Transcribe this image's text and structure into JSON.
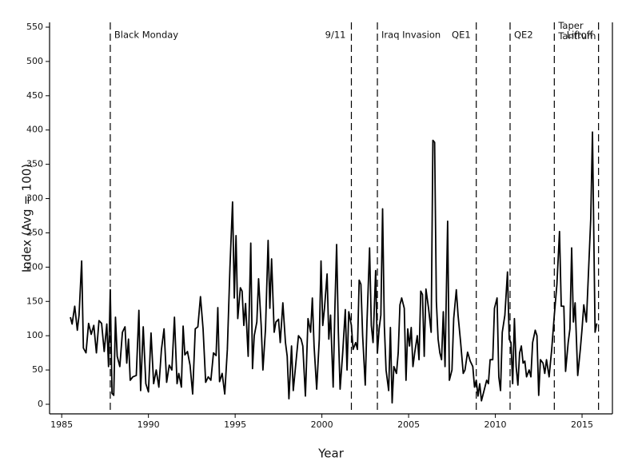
{
  "chart_data": {
    "type": "line",
    "xlabel": "Year",
    "ylabel": "Index (Avg = 100)",
    "xlim": [
      1984.3,
      2016.75
    ],
    "ylim": [
      -14,
      557
    ],
    "xticks": [
      1985,
      1990,
      1995,
      2000,
      2005,
      2010,
      2015
    ],
    "yticks": [
      0,
      50,
      100,
      150,
      200,
      250,
      300,
      350,
      400,
      450,
      500,
      550
    ],
    "color": "#000000",
    "events": [
      {
        "label": "Black Monday",
        "x": 1987.8
      },
      {
        "label": "9/11",
        "x": 2001.7
      },
      {
        "label": "Iraq Invasion",
        "x": 2003.2
      },
      {
        "label": "QE1",
        "x": 2008.9
      },
      {
        "label": "QE2",
        "x": 2010.85
      },
      {
        "label": "Taper Tantrum",
        "x": 2013.4
      },
      {
        "label": "Liftoff",
        "x": 2015.95
      }
    ],
    "x": [
      1985.5,
      1985.6,
      1985.75,
      1985.9,
      1986.0,
      1986.15,
      1986.25,
      1986.4,
      1986.55,
      1986.7,
      1986.85,
      1987.0,
      1987.15,
      1987.3,
      1987.45,
      1987.6,
      1987.7,
      1987.8,
      1987.9,
      1988.0,
      1988.1,
      1988.2,
      1988.35,
      1988.5,
      1988.65,
      1988.75,
      1988.85,
      1988.95,
      1989.1,
      1989.3,
      1989.45,
      1989.55,
      1989.7,
      1989.85,
      1990.0,
      1990.15,
      1990.3,
      1990.45,
      1990.6,
      1990.75,
      1990.9,
      1991.05,
      1991.2,
      1991.35,
      1991.5,
      1991.65,
      1991.75,
      1991.9,
      1992.0,
      1992.1,
      1992.25,
      1992.4,
      1992.55,
      1992.7,
      1992.85,
      1993.0,
      1993.15,
      1993.3,
      1993.45,
      1993.6,
      1993.75,
      1993.9,
      1994.0,
      1994.1,
      1994.25,
      1994.4,
      1994.55,
      1994.7,
      1994.85,
      1994.95,
      1995.05,
      1995.15,
      1995.3,
      1995.4,
      1995.5,
      1995.6,
      1995.75,
      1995.9,
      1996.0,
      1996.1,
      1996.25,
      1996.35,
      1996.5,
      1996.6,
      1996.75,
      1996.9,
      1997.0,
      1997.1,
      1997.25,
      1997.35,
      1997.5,
      1997.6,
      1997.75,
      1997.9,
      1998.0,
      1998.1,
      1998.25,
      1998.35,
      1998.5,
      1998.65,
      1998.8,
      1998.9,
      1999.05,
      1999.2,
      1999.35,
      1999.45,
      1999.55,
      1999.7,
      1999.85,
      1999.95,
      2000.05,
      2000.15,
      2000.3,
      2000.4,
      2000.5,
      2000.65,
      2000.75,
      2000.85,
      2000.95,
      2001.05,
      2001.2,
      2001.35,
      2001.45,
      2001.55,
      2001.7,
      2001.8,
      2001.95,
      2002.05,
      2002.15,
      2002.25,
      2002.35,
      2002.5,
      2002.6,
      2002.75,
      2002.85,
      2002.95,
      2003.1,
      2003.2,
      2003.3,
      2003.4,
      2003.5,
      2003.6,
      2003.7,
      2003.85,
      2003.95,
      2004.05,
      2004.15,
      2004.3,
      2004.4,
      2004.5,
      2004.6,
      2004.75,
      2004.85,
      2004.95,
      2005.05,
      2005.15,
      2005.25,
      2005.35,
      2005.5,
      2005.6,
      2005.7,
      2005.8,
      2005.9,
      2006.0,
      2006.15,
      2006.3,
      2006.4,
      2006.5,
      2006.6,
      2006.7,
      2006.8,
      2006.9,
      2007.0,
      2007.1,
      2007.25,
      2007.35,
      2007.5,
      2007.6,
      2007.75,
      2007.85,
      2008.0,
      2008.15,
      2008.25,
      2008.4,
      2008.55,
      2008.7,
      2008.8,
      2008.9,
      2009.0,
      2009.1,
      2009.2,
      2009.35,
      2009.5,
      2009.6,
      2009.7,
      2009.85,
      2009.95,
      2010.1,
      2010.2,
      2010.3,
      2010.4,
      2010.55,
      2010.7,
      2010.8,
      2010.9,
      2011.0,
      2011.1,
      2011.2,
      2011.3,
      2011.4,
      2011.5,
      2011.6,
      2011.7,
      2011.8,
      2011.95,
      2012.05,
      2012.15,
      2012.3,
      2012.4,
      2012.5,
      2012.6,
      2012.75,
      2012.85,
      2012.95,
      2013.1,
      2013.25,
      2013.4,
      2013.55,
      2013.7,
      2013.8,
      2013.95,
      2014.05,
      2014.2,
      2014.3,
      2014.4,
      2014.5,
      2014.6,
      2014.75,
      2014.9,
      2015.0,
      2015.1,
      2015.25,
      2015.4,
      2015.5,
      2015.6,
      2015.75,
      2015.85
    ],
    "values": [
      127,
      117,
      143,
      108,
      130,
      209,
      82,
      75,
      118,
      102,
      115,
      75,
      122,
      118,
      77,
      117,
      55,
      167,
      16,
      13,
      127,
      70,
      55,
      105,
      113,
      60,
      95,
      35,
      40,
      42,
      137,
      20,
      113,
      30,
      18,
      104,
      30,
      50,
      25,
      80,
      110,
      32,
      57,
      50,
      127,
      30,
      45,
      25,
      114,
      72,
      77,
      57,
      15,
      110,
      113,
      157,
      110,
      32,
      40,
      35,
      75,
      71,
      141,
      33,
      45,
      15,
      80,
      200,
      295,
      155,
      246,
      125,
      170,
      165,
      115,
      147,
      70,
      235,
      52,
      100,
      120,
      183,
      115,
      50,
      110,
      239,
      140,
      212,
      105,
      120,
      124,
      90,
      148,
      90,
      70,
      8,
      85,
      20,
      60,
      100,
      95,
      85,
      12,
      125,
      105,
      155,
      85,
      22,
      95,
      209,
      115,
      140,
      190,
      95,
      130,
      25,
      140,
      233,
      105,
      22,
      75,
      138,
      50,
      135,
      115,
      80,
      90,
      80,
      181,
      175,
      100,
      28,
      120,
      228,
      115,
      90,
      195,
      75,
      110,
      130,
      285,
      115,
      50,
      20,
      112,
      2,
      55,
      45,
      75,
      145,
      155,
      140,
      35,
      110,
      85,
      112,
      55,
      75,
      100,
      65,
      165,
      160,
      70,
      168,
      140,
      105,
      385,
      382,
      150,
      95,
      75,
      65,
      135,
      55,
      267,
      35,
      50,
      125,
      167,
      130,
      90,
      45,
      50,
      76,
      63,
      55,
      25,
      35,
      12,
      30,
      5,
      20,
      35,
      30,
      65,
      65,
      140,
      155,
      40,
      20,
      105,
      130,
      193,
      95,
      90,
      30,
      125,
      55,
      28,
      75,
      85,
      60,
      63,
      40,
      50,
      40,
      90,
      108,
      100,
      13,
      65,
      60,
      45,
      65,
      40,
      80,
      130,
      175,
      252,
      143,
      143,
      48,
      90,
      110,
      228,
      120,
      148,
      42,
      80,
      110,
      145,
      120,
      210,
      270,
      397,
      105,
      118
    ]
  }
}
